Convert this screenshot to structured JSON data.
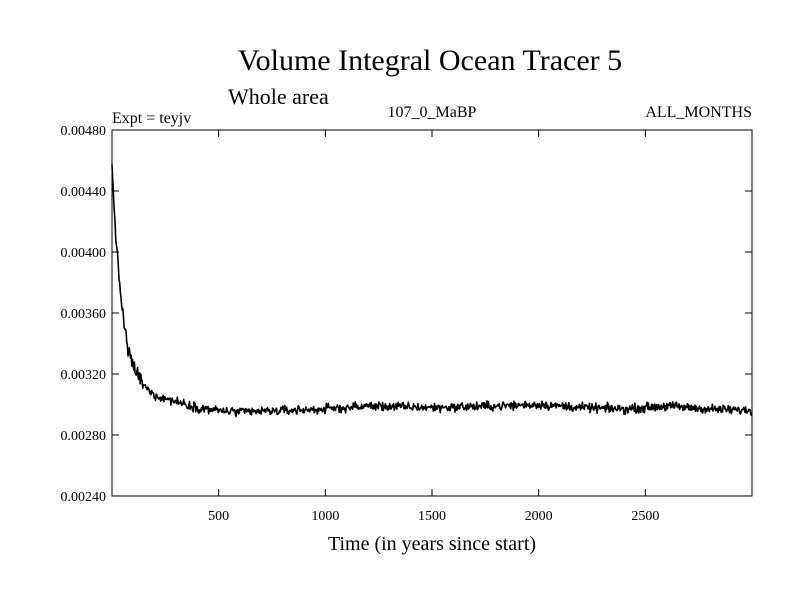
{
  "chart_data": {
    "type": "line",
    "title": "Volume Integral Ocean Tracer 5",
    "subtitle": "Whole area",
    "expt_label": "Expt = teyjv",
    "period_label": "107_0_MaBP",
    "months_label": "ALL_MONTHS",
    "xlabel": "Time (in years since start)",
    "ylabel": "",
    "xlim": [
      0,
      3000
    ],
    "ylim": [
      0.0024,
      0.0048
    ],
    "xticks": [
      500,
      1000,
      1500,
      2000,
      2500
    ],
    "xtick_labels": [
      "500",
      "1000",
      "1500",
      "2000",
      "2500"
    ],
    "yticks": [
      0.0024,
      0.0028,
      0.0032,
      0.0036,
      0.004,
      0.0044,
      0.0048
    ],
    "ytick_labels": [
      "0.00240",
      "0.00280",
      "0.00320",
      "0.00360",
      "0.00400",
      "0.00440",
      "0.00480"
    ],
    "series": [
      {
        "name": "Ocean Tracer 5",
        "color": "#000000",
        "description_points": {
          "x": [
            0,
            10,
            25,
            50,
            75,
            100,
            150,
            200,
            300,
            400,
            500,
            600,
            800,
            1000,
            1200,
            1500,
            1800,
            2000,
            2200,
            2400,
            2600,
            2800,
            3000
          ],
          "y": [
            0.00455,
            0.0043,
            0.00395,
            0.0036,
            0.00335,
            0.00325,
            0.00312,
            0.00306,
            0.00302,
            0.00298,
            0.00296,
            0.00295,
            0.00296,
            0.00297,
            0.00299,
            0.00298,
            0.00299,
            0.003,
            0.00298,
            0.00297,
            0.00299,
            0.00297,
            0.00296
          ]
        },
        "noise_amplitude": 8e-05
      }
    ]
  }
}
